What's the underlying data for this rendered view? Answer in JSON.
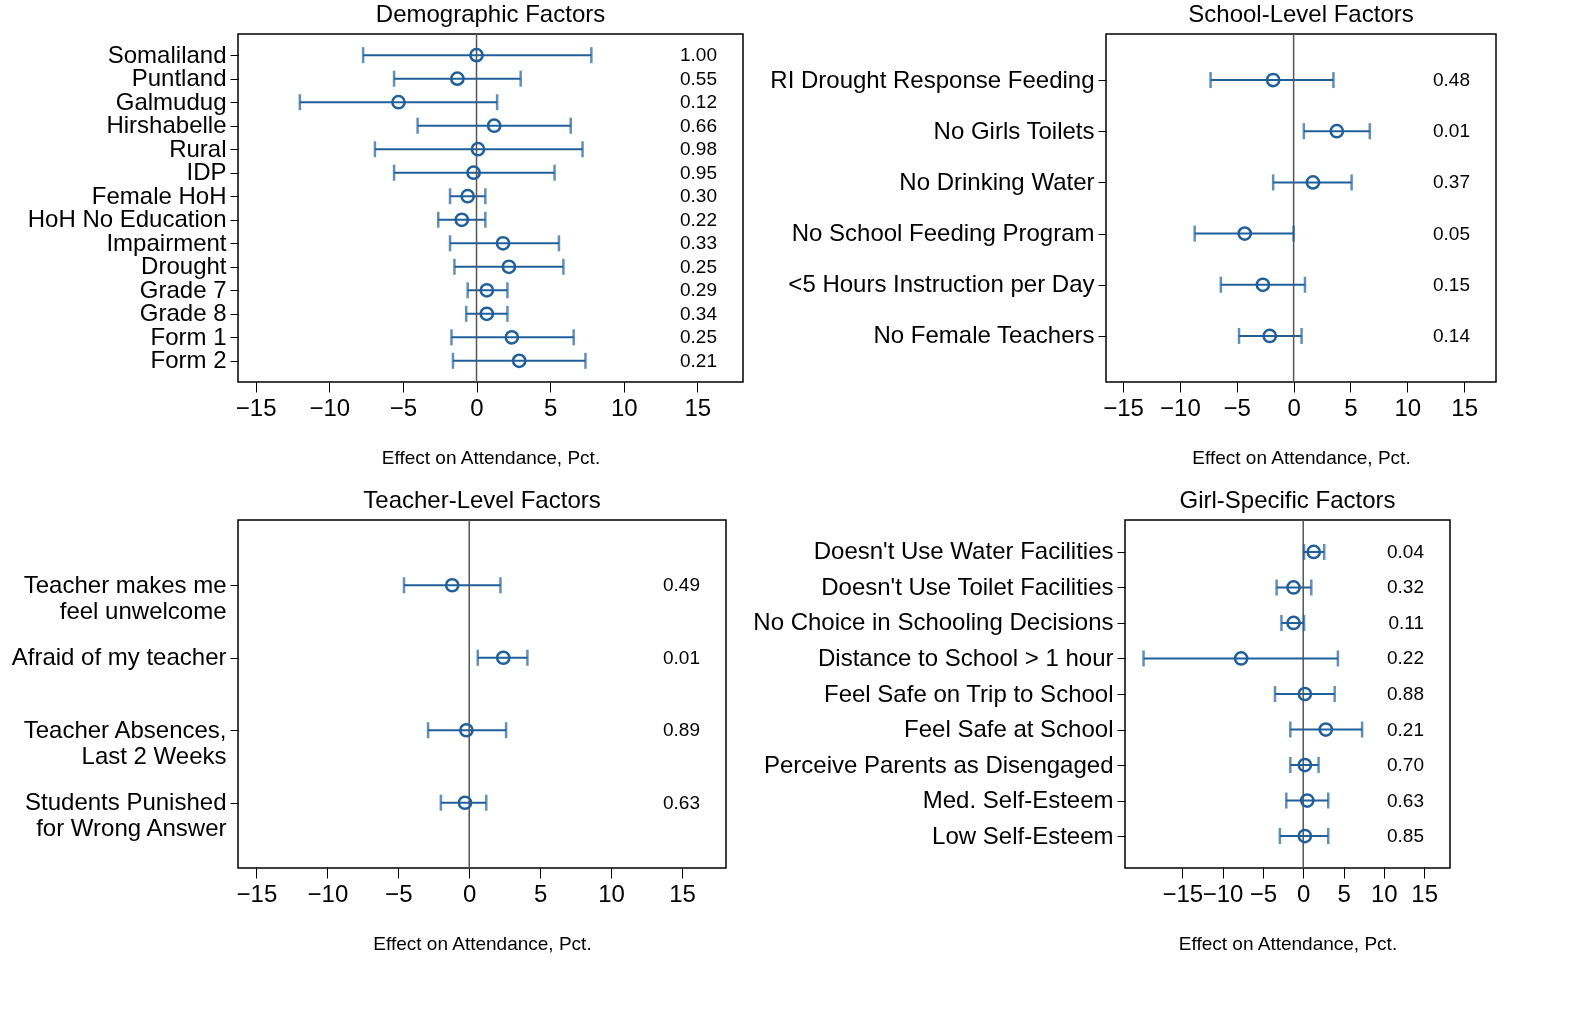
{
  "chart_data": [
    {
      "type": "scatter",
      "orientation": "horizontal",
      "title": "Demographic Factors",
      "xlabel": "Effect on Attendance, Pct.",
      "marker": "circle",
      "categories": [
        "Somaliland",
        "Puntland",
        "Galmudug",
        "Hirshabelle",
        "Rural",
        "IDP",
        "Female HoH",
        "HoH No Education",
        "Impairment",
        "Drought",
        "Grade 7",
        "Grade 8",
        "Form 1",
        "Form 2"
      ],
      "xlim": [
        -16.2,
        18.1
      ],
      "xticks": [
        -15,
        -10,
        -5,
        0,
        5,
        10,
        15
      ],
      "ref_lines": [
        {
          "axis": "x",
          "value": 0,
          "color": "#555555"
        }
      ],
      "series": [
        {
          "color": "#1f5f9c",
          "values": [
            0,
            -1.3,
            -5.3,
            1.2,
            0.1,
            -0.2,
            -0.6,
            -1.0,
            1.8,
            2.2,
            0.7,
            0.7,
            2.4,
            2.9
          ],
          "errors": [
            [
              -7.7,
              7.8
            ],
            [
              -5.6,
              3.0
            ],
            [
              -12.0,
              1.4
            ],
            [
              -4.0,
              6.4
            ],
            [
              -6.9,
              7.2
            ],
            [
              -5.6,
              5.3
            ],
            [
              -1.8,
              0.6
            ],
            [
              -2.6,
              0.6
            ],
            [
              -1.8,
              5.6
            ],
            [
              -1.5,
              5.9
            ],
            [
              -0.6,
              2.1
            ],
            [
              -0.7,
              2.1
            ],
            [
              -1.7,
              6.6
            ],
            [
              -1.6,
              7.4
            ]
          ]
        }
      ],
      "annotations": [
        "1.00",
        "0.55",
        "0.12",
        "0.66",
        "0.98",
        "0.95",
        "0.30",
        "0.22",
        "0.33",
        "0.25",
        "0.29",
        "0.34",
        "0.25",
        "0.21"
      ]
    },
    {
      "type": "scatter",
      "orientation": "horizontal",
      "title": "School-Level Factors",
      "xlabel": "Effect on Attendance, Pct.",
      "marker": "circle",
      "categories": [
        "RI Drought Response Feeding",
        "No Girls Toilets",
        "No Drinking Water",
        "No School Feeding Program",
        "<5 Hours Instruction per Day",
        "No Female Teachers"
      ],
      "xlim": [
        -16.5,
        17.8
      ],
      "xticks": [
        -15,
        -10,
        -5,
        0,
        5,
        10,
        15
      ],
      "ref_lines": [
        {
          "axis": "x",
          "value": 0,
          "color": "#555555"
        }
      ],
      "series": [
        {
          "color": "#1f5f9c",
          "values": [
            -1.8,
            3.8,
            1.7,
            -4.3,
            -2.7,
            -2.1
          ],
          "errors": [
            [
              -7.3,
              3.5
            ],
            [
              0.9,
              6.7
            ],
            [
              -1.8,
              5.1
            ],
            [
              -8.7,
              0.0
            ],
            [
              -6.4,
              1.0
            ],
            [
              -4.8,
              0.7
            ]
          ]
        }
      ],
      "annotations": [
        "0.48",
        "0.01",
        "0.37",
        "0.05",
        "0.15",
        "0.14"
      ]
    },
    {
      "type": "scatter",
      "orientation": "horizontal",
      "title": "Teacher-Level Factors",
      "xlabel": "Effect on Attendance, Pct.",
      "marker": "circle",
      "categories": [
        "Teacher makes me\nfeel unwelcome",
        "Afraid of my teacher",
        "Teacher Absences,\nLast 2 Weeks",
        "Students Punished\nfor Wrong Answer"
      ],
      "xlim": [
        -16.3,
        18.1
      ],
      "xticks": [
        -15,
        -10,
        -5,
        0,
        5,
        10,
        15
      ],
      "ref_lines": [
        {
          "axis": "x",
          "value": 0,
          "color": "#555555"
        }
      ],
      "series": [
        {
          "color": "#1f5f9c",
          "values": [
            -1.2,
            2.4,
            -0.2,
            -0.3
          ],
          "errors": [
            [
              -4.6,
              2.2
            ],
            [
              0.6,
              4.1
            ],
            [
              -2.9,
              2.6
            ],
            [
              -2.0,
              1.2
            ]
          ]
        }
      ],
      "annotations": [
        "0.49",
        "0.01",
        "0.89",
        "0.63"
      ]
    },
    {
      "type": "scatter",
      "orientation": "horizontal",
      "title": "Girl-Specific Factors",
      "xlabel": "Effect on Attendance, Pct.",
      "marker": "circle",
      "categories": [
        "Doesn't Use Water Facilities",
        "Doesn't Use Toilet Facilities",
        "No Choice in Schooling Decisions",
        "Distance to School > 1 hour",
        "Feel Safe on Trip to School",
        "Feel Safe at School",
        "Perceive Parents as Disengaged",
        "Med. Self-Esteem",
        "Low Self-Esteem"
      ],
      "xlim": [
        -22.1,
        18.2
      ],
      "xticks": [
        -15,
        -10,
        -5,
        0,
        5,
        10,
        15
      ],
      "ref_lines": [
        {
          "axis": "x",
          "value": 0,
          "color": "#555555"
        }
      ],
      "series": [
        {
          "color": "#1f5f9c",
          "values": [
            1.3,
            -1.2,
            -1.2,
            -7.7,
            0.2,
            2.8,
            0.2,
            0.5,
            0.2
          ],
          "errors": [
            [
              0.1,
              2.6
            ],
            [
              -3.3,
              1.0
            ],
            [
              -2.7,
              0.1
            ],
            [
              -19.8,
              4.3
            ],
            [
              -3.5,
              3.9
            ],
            [
              -1.6,
              7.3
            ],
            [
              -1.6,
              1.9
            ],
            [
              -2.1,
              3.1
            ],
            [
              -2.9,
              3.1
            ]
          ]
        }
      ],
      "annotations": [
        "0.04",
        "0.32",
        "0.11",
        "0.22",
        "0.88",
        "0.21",
        "0.70",
        "0.63",
        "0.85"
      ]
    }
  ]
}
